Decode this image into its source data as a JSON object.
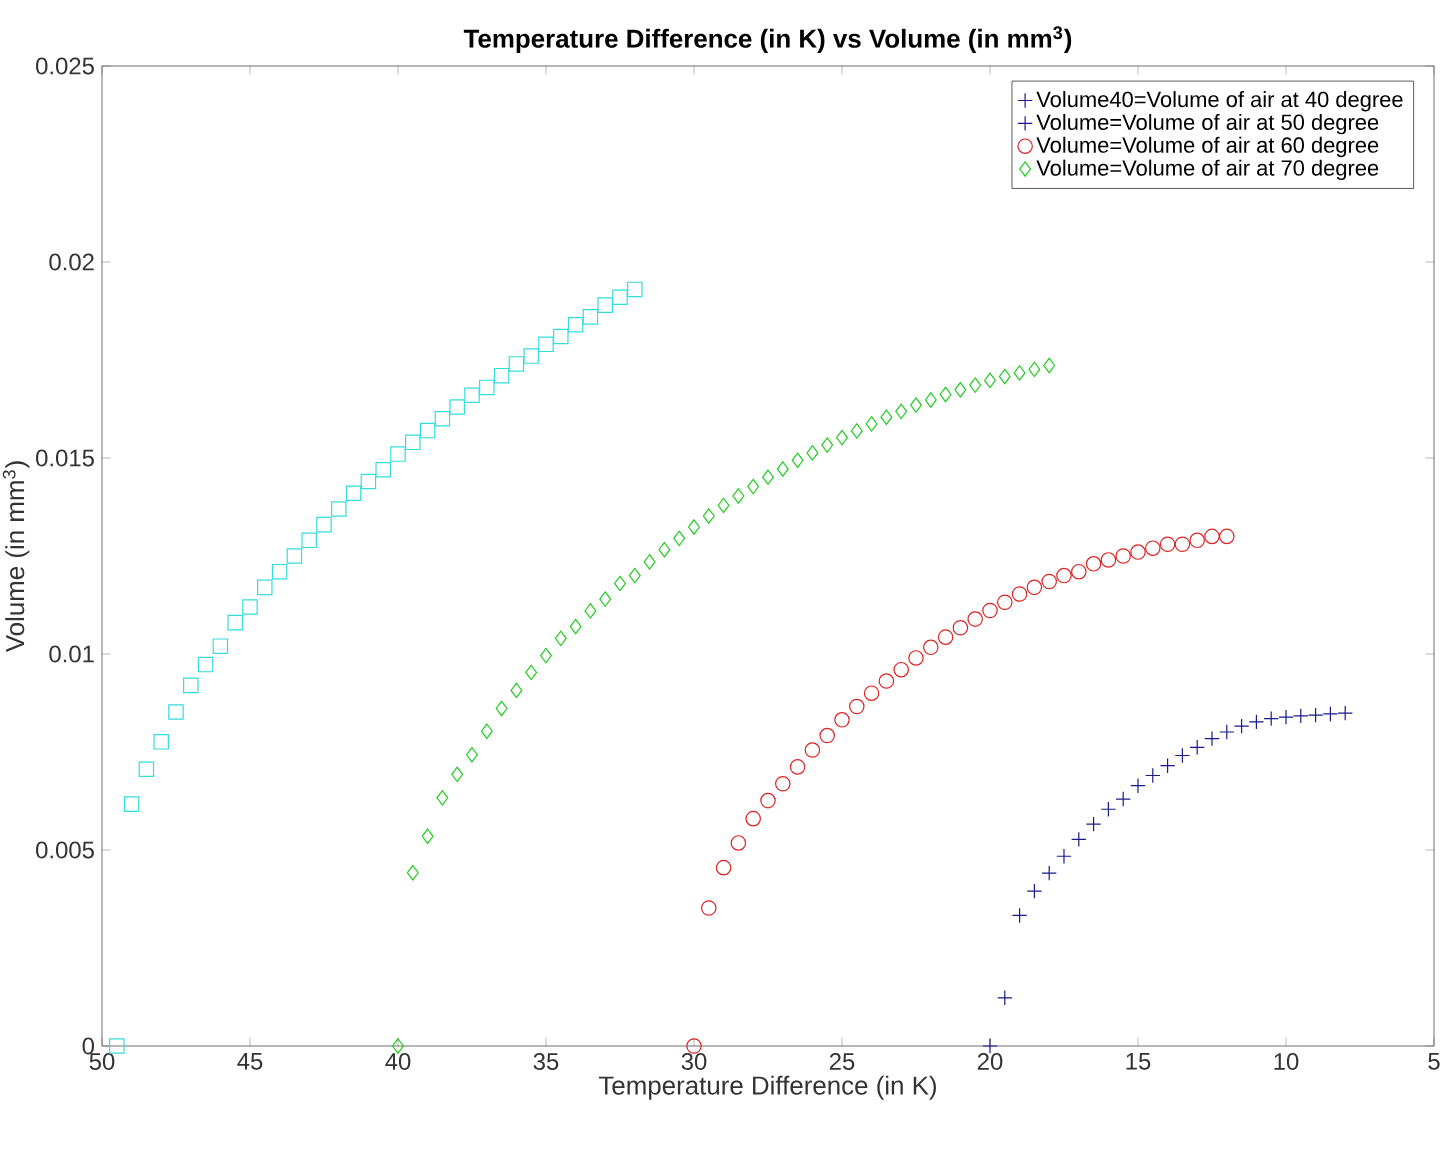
{
  "chart_data": {
    "type": "scatter",
    "title": "**Temperature Difference (in K) vs Volume (in mm$^{3}$)**",
    "xlabel": "Temperature Difference (in K)",
    "ylabel": "Volume (in mm$^{3}$)",
    "xlim": [
      50,
      5
    ],
    "ylim": [
      0,
      0.025
    ],
    "xticks": [
      50,
      45,
      40,
      35,
      30,
      25,
      20,
      15,
      10,
      5
    ],
    "yticks": [
      0,
      0.005,
      0.01,
      0.015,
      0.02,
      0.025
    ],
    "grid": false,
    "legend": "top right",
    "series": [
      {
        "name": "Volume40=Volume of air at 40 degree",
        "color": "#1a1a8c",
        "marker": "cross"
      },
      {
        "name": "Volume=Volume of air at 50 degree",
        "color": "#1a1a8c",
        "marker": "cross",
        "x": [
          20,
          19.5,
          19,
          18.5,
          18,
          17.5,
          17,
          16.5,
          16,
          15.5,
          15,
          14.5,
          14,
          13.5,
          13,
          12.5,
          12,
          11.5,
          11,
          10.5,
          10,
          9.5,
          9,
          8.5,
          8
        ],
        "values": [
          0,
          0.00123,
          0.00333,
          0.00395,
          0.00441,
          0.00484,
          0.00527,
          0.00566,
          0.00604,
          0.0063,
          0.00664,
          0.0069,
          0.00715,
          0.00741,
          0.00762,
          0.00784,
          0.00801,
          0.00816,
          0.00827,
          0.00835,
          0.00839,
          0.00842,
          0.00844,
          0.00847,
          0.00849
        ]
      },
      {
        "name": "Volume=Volume of air at 60 degree",
        "color": "#dd2222",
        "marker": "circle",
        "x": [
          30,
          29.5,
          29,
          28.5,
          28,
          27.5,
          27,
          26.5,
          26,
          25.5,
          25,
          24.5,
          24,
          23.5,
          23,
          22.5,
          22,
          21.5,
          21,
          20.5,
          20,
          19.5,
          19,
          18.5,
          18,
          17.5,
          17,
          16.5,
          16,
          15.5,
          15,
          14.5,
          14,
          13.5,
          13,
          12.5,
          12
        ],
        "values": [
          0,
          0.00352,
          0.00455,
          0.00518,
          0.0058,
          0.00626,
          0.00669,
          0.00712,
          0.00755,
          0.00792,
          0.00832,
          0.00866,
          0.009,
          0.00931,
          0.0096,
          0.0099,
          0.01017,
          0.01043,
          0.01067,
          0.01089,
          0.01111,
          0.01132,
          0.01153,
          0.0117,
          0.01185,
          0.012,
          0.0121,
          0.0123,
          0.0124,
          0.0125,
          0.0126,
          0.0127,
          0.0128,
          0.0128,
          0.0129,
          0.013,
          0.013
        ]
      },
      {
        "name": "Volume=Volume of air at 70 degree",
        "color": "#22cc22",
        "marker": "diamond",
        "x": [
          40,
          39.5,
          39,
          38.5,
          38,
          37.5,
          37,
          36.5,
          36,
          35.5,
          35,
          34.5,
          34,
          33.5,
          33,
          32.5,
          32,
          31.5,
          31,
          30.5,
          30,
          29.5,
          29,
          28.5,
          28,
          27.5,
          27,
          26.5,
          26,
          25.5,
          25,
          24.5,
          24,
          23.5,
          23,
          22.5,
          22,
          21.5,
          21,
          20.5,
          20,
          19.5,
          19,
          18.5,
          18
        ],
        "values": [
          0,
          0.00442,
          0.00535,
          0.00633,
          0.00693,
          0.00743,
          0.00803,
          0.00861,
          0.00907,
          0.00953,
          0.00996,
          0.0104,
          0.0107,
          0.0111,
          0.0114,
          0.0118,
          0.012,
          0.01235,
          0.01266,
          0.01295,
          0.01324,
          0.01352,
          0.01379,
          0.01403,
          0.01427,
          0.01451,
          0.01472,
          0.01494,
          0.01513,
          0.01533,
          0.01552,
          0.01569,
          0.01587,
          0.01604,
          0.01619,
          0.01635,
          0.01648,
          0.01662,
          0.01674,
          0.01686,
          0.01698,
          0.01708,
          0.01717,
          0.01726,
          0.01736
        ]
      },
      {
        "color": "#33dddd",
        "marker": "square",
        "x": [
          49.5,
          49,
          48.5,
          48,
          47.5,
          47,
          46.5,
          46,
          45.5,
          45,
          44.5,
          44,
          43.5,
          43,
          42.5,
          42,
          41.5,
          41,
          40.5,
          40,
          39.5,
          39,
          38.5,
          38,
          37.5,
          37,
          36.5,
          36,
          35.5,
          35,
          34.5,
          34,
          33.5,
          33,
          32.5,
          32
        ],
        "values": [
          0,
          0.00617,
          0.00706,
          0.00776,
          0.00852,
          0.0092,
          0.00973,
          0.0102,
          0.0108,
          0.0112,
          0.0117,
          0.0121,
          0.0125,
          0.0129,
          0.0133,
          0.0137,
          0.0141,
          0.0144,
          0.0147,
          0.0151,
          0.0154,
          0.0157,
          0.016,
          0.0163,
          0.0166,
          0.0168,
          0.0171,
          0.0174,
          0.0176,
          0.0179,
          0.0181,
          0.0184,
          0.0186,
          0.0189,
          0.0191,
          0.0193
        ]
      }
    ]
  }
}
